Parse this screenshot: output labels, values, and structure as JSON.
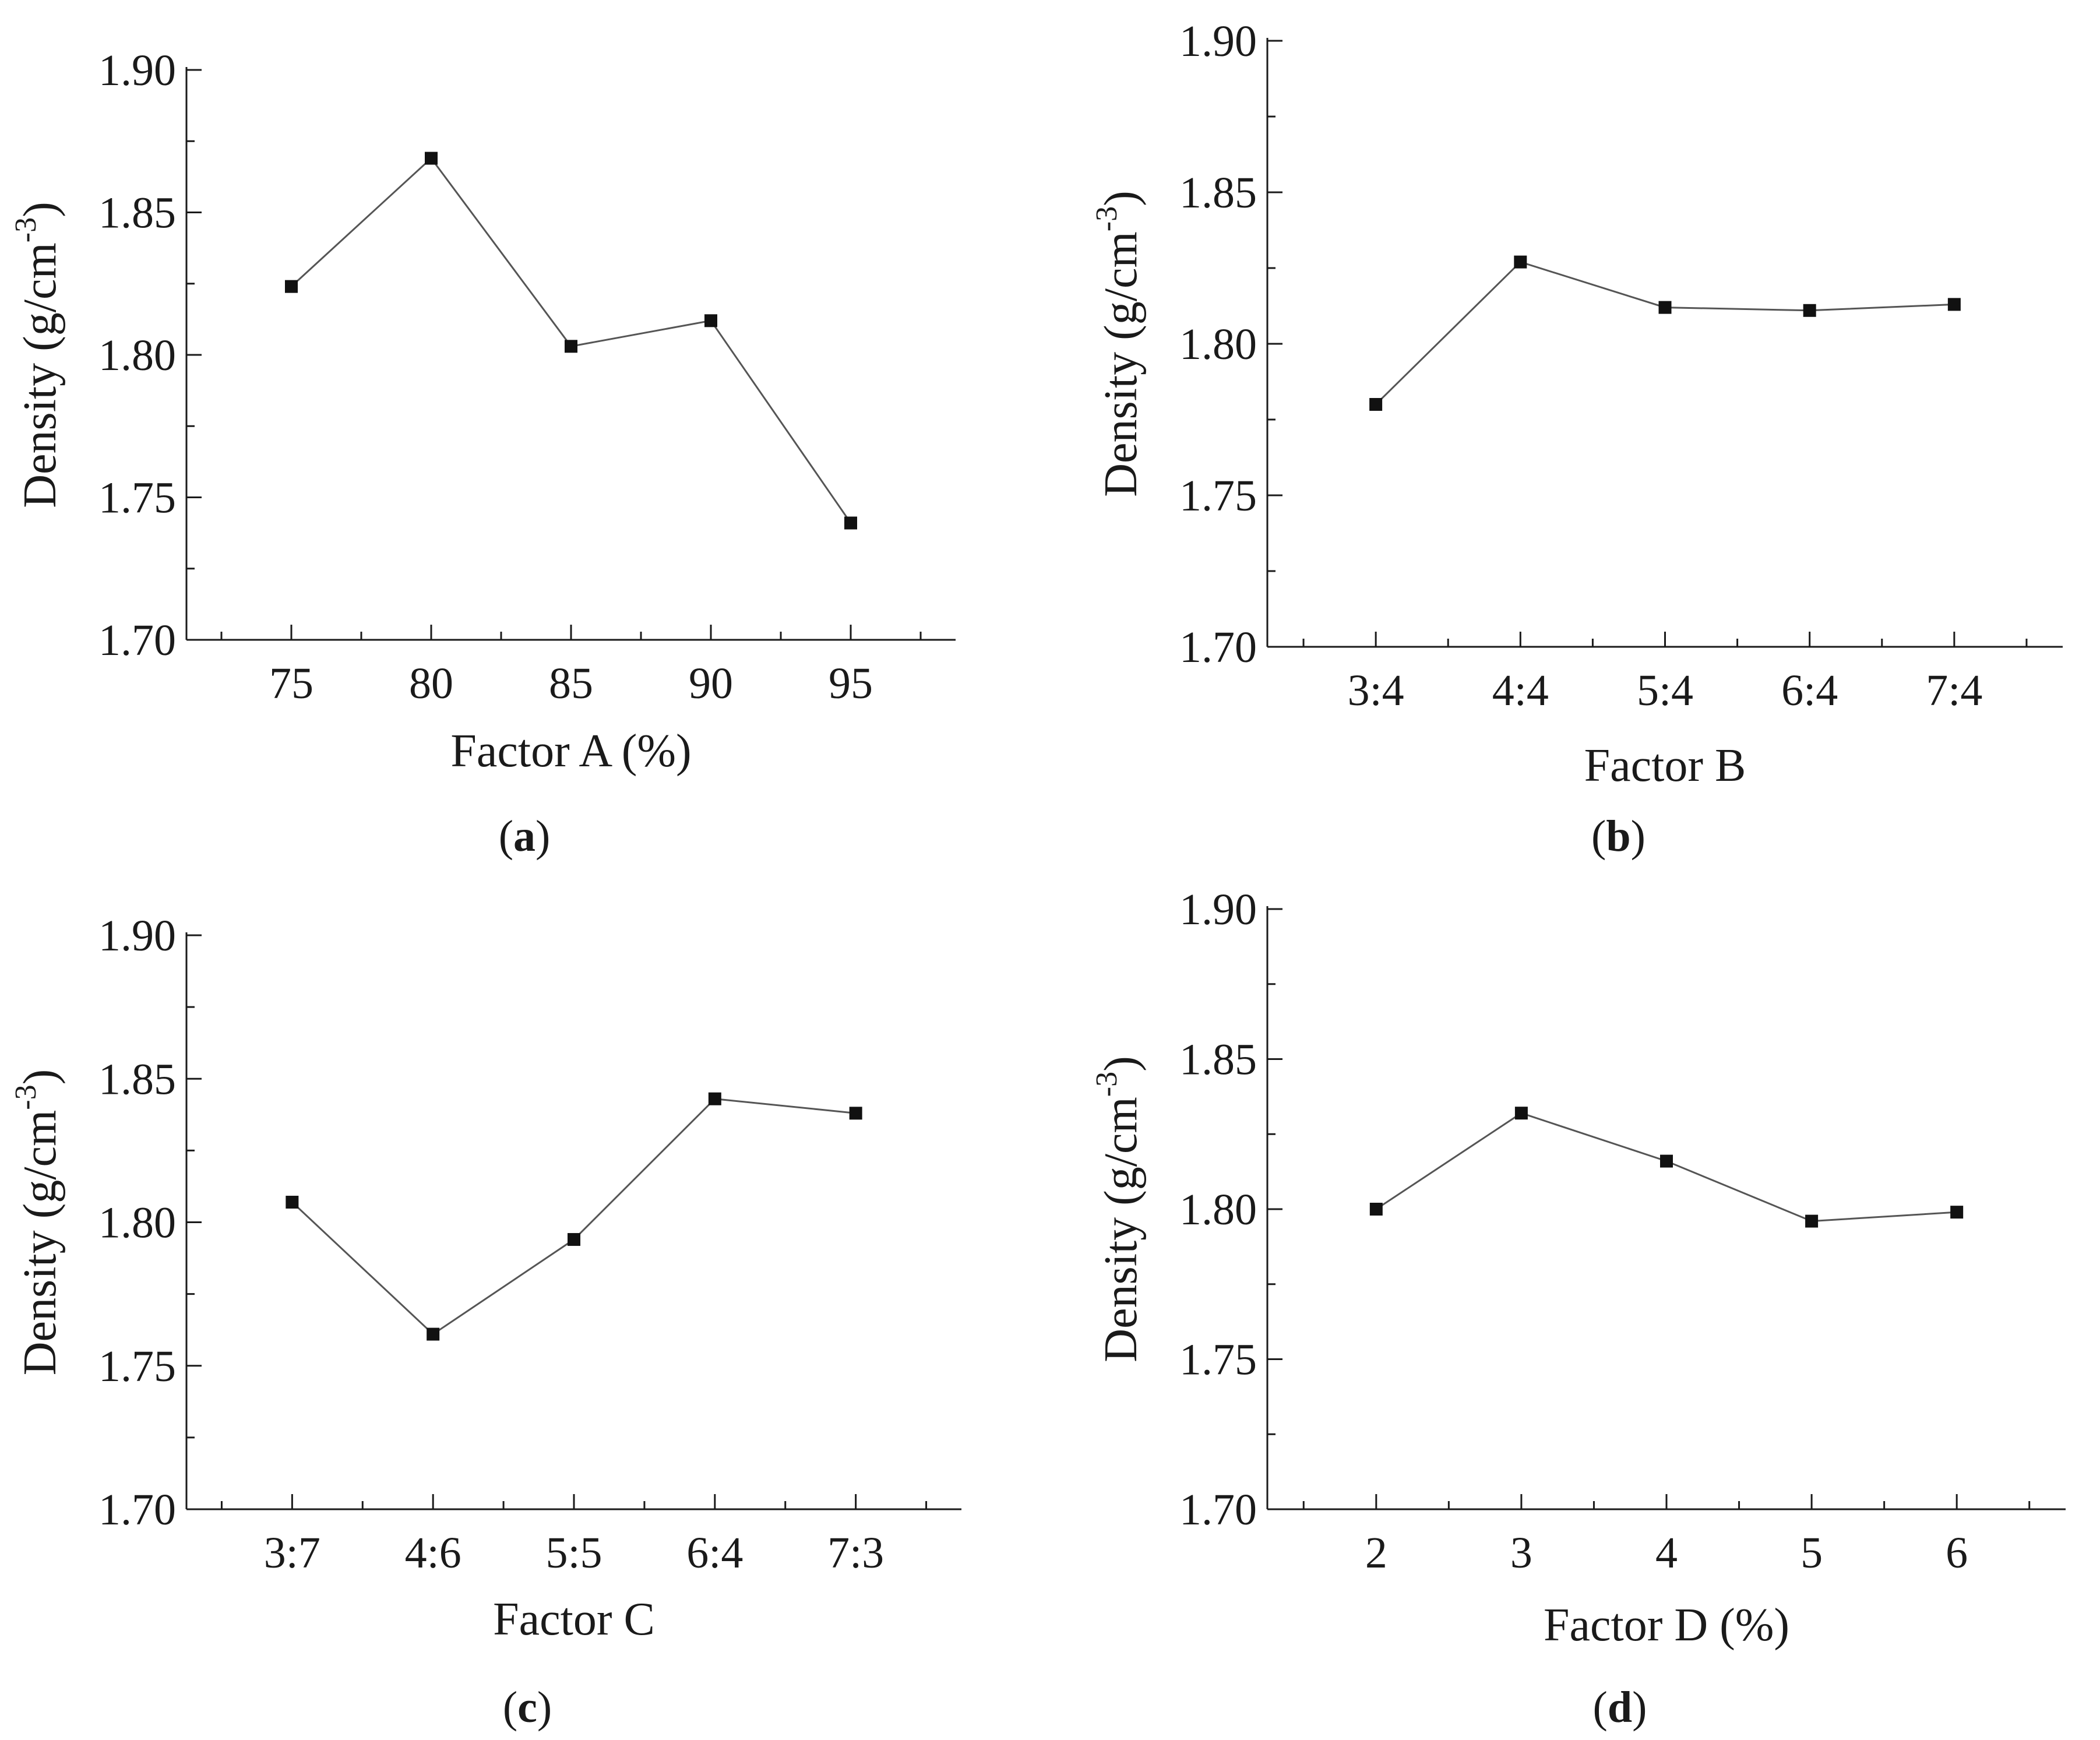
{
  "chart_data": [
    {
      "type": "line",
      "panel_label": "a",
      "xlabel": "Factor A (%)",
      "ylabel_main": "Density (g/cm",
      "ylabel_sup": "-3",
      "ylabel_close": ")",
      "categories": [
        "75",
        "80",
        "85",
        "90",
        "95"
      ],
      "values": [
        1.824,
        1.869,
        1.803,
        1.812,
        1.741
      ],
      "ylim": [
        1.7,
        1.9
      ],
      "yticks": [
        1.7,
        1.75,
        1.8,
        1.85,
        1.9
      ],
      "ytick_labels": [
        "1.70",
        "1.75",
        "1.80",
        "1.85",
        "1.90"
      ],
      "legend": "none",
      "grid": false
    },
    {
      "type": "line",
      "panel_label": "b",
      "xlabel": "Factor B",
      "ylabel_main": "Density (g/cm",
      "ylabel_sup": "-3",
      "ylabel_close": ")",
      "categories": [
        "3:4",
        "4:4",
        "5:4",
        "6:4",
        "7:4"
      ],
      "values": [
        1.78,
        1.827,
        1.812,
        1.811,
        1.813
      ],
      "ylim": [
        1.7,
        1.9
      ],
      "yticks": [
        1.7,
        1.75,
        1.8,
        1.85,
        1.9
      ],
      "ytick_labels": [
        "1.70",
        "1.75",
        "1.80",
        "1.85",
        "1.90"
      ],
      "legend": "none",
      "grid": false
    },
    {
      "type": "line",
      "panel_label": "c",
      "xlabel": "Factor C",
      "ylabel_main": "Density (g/cm",
      "ylabel_sup": "-3",
      "ylabel_close": ")",
      "categories": [
        "3:7",
        "4:6",
        "5:5",
        "6:4",
        "7:3"
      ],
      "values": [
        1.807,
        1.761,
        1.794,
        1.843,
        1.838
      ],
      "ylim": [
        1.7,
        1.9
      ],
      "yticks": [
        1.7,
        1.75,
        1.8,
        1.85,
        1.9
      ],
      "ytick_labels": [
        "1.70",
        "1.75",
        "1.80",
        "1.85",
        "1.90"
      ],
      "legend": "none",
      "grid": false
    },
    {
      "type": "line",
      "panel_label": "d",
      "xlabel": "Factor D (%)",
      "ylabel_main": "Density (g/cm",
      "ylabel_sup": "-3",
      "ylabel_close": ")",
      "categories": [
        "2",
        "3",
        "4",
        "5",
        "6"
      ],
      "values": [
        1.8,
        1.832,
        1.816,
        1.796,
        1.799
      ],
      "ylim": [
        1.7,
        1.9
      ],
      "yticks": [
        1.7,
        1.75,
        1.8,
        1.85,
        1.9
      ],
      "ytick_labels": [
        "1.70",
        "1.75",
        "1.80",
        "1.85",
        "1.90"
      ],
      "legend": "none",
      "grid": false
    }
  ],
  "colors": {
    "line": "#555555",
    "marker": "#111111",
    "axis": "#1a1a1a"
  }
}
